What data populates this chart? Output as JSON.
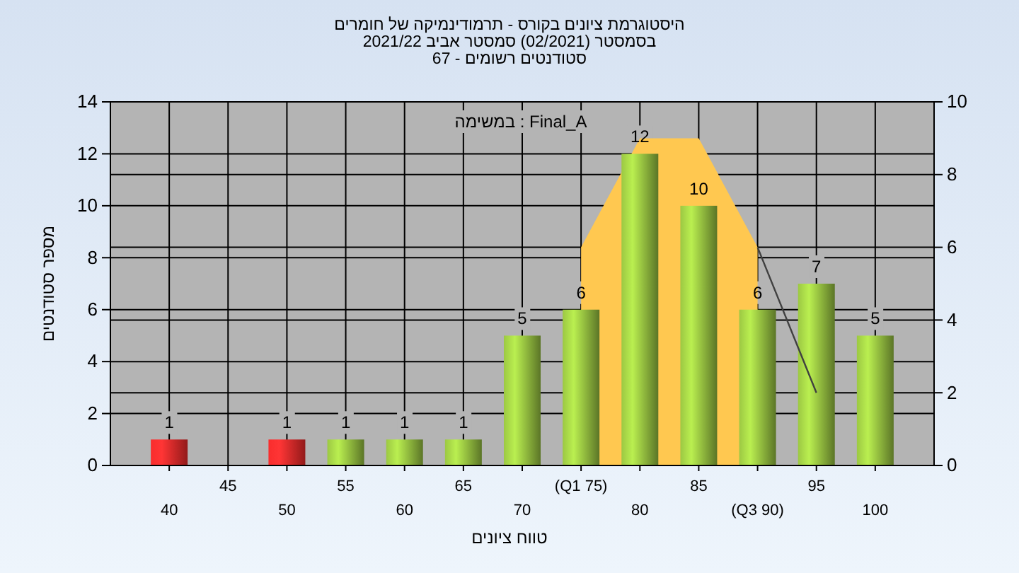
{
  "chart_data": {
    "type": "bar",
    "title": [
      "היסטוגרמת ציונים בקורס - תרמודינמיקה של חומרים",
      "בסמסטר  (02/2021)  סמסטר אביב 2021/22",
      "סטודנטים רשומים - 67"
    ],
    "xlabel": "טווח ציונים",
    "ylabel": "מספר סטודנטים",
    "categories": [
      "40",
      "45",
      "50",
      "55",
      "60",
      "65",
      "70",
      "(Q1 75)",
      "80",
      "85",
      "(Q3 90)",
      "95",
      "100"
    ],
    "series": [
      {
        "value_labels": [
          "1",
          null,
          "1",
          "1",
          "1",
          "1",
          "5",
          "6",
          "12",
          "10",
          "6",
          "7",
          "5"
        ],
        "colors": [
          "#e02828",
          null,
          "#e02828",
          "#8cb43c",
          "#8cb43c",
          "#8cb43c",
          "#8cb43c",
          "#8cb43c",
          "#8cb43c",
          "#8cb43c",
          "#8cb43c",
          "#8cb43c",
          "#8cb43c"
        ],
        "values": [
          1,
          null,
          1,
          1,
          1,
          1,
          5,
          6,
          12,
          10,
          6,
          7,
          5
        ]
      },
      {
        "type": "area",
        "axis": "y2",
        "color": "#ffc850",
        "values": [
          null,
          null,
          null,
          null,
          null,
          null,
          null,
          6,
          9,
          9,
          6,
          null,
          null
        ]
      },
      {
        "type": "line",
        "axis": "y2",
        "color": "#404040",
        "values": [
          null,
          null,
          null,
          null,
          null,
          null,
          null,
          null,
          null,
          null,
          6,
          2,
          null
        ]
      }
    ],
    "ylim": [
      0,
      14
    ],
    "yticks": [
      0,
      2,
      4,
      6,
      8,
      10,
      12,
      14
    ],
    "y2lim": [
      0,
      10
    ],
    "y2ticks": [
      0,
      2,
      4,
      6,
      8,
      10
    ],
    "grid": true,
    "annotations": [
      "במשימה : Final_A"
    ]
  }
}
